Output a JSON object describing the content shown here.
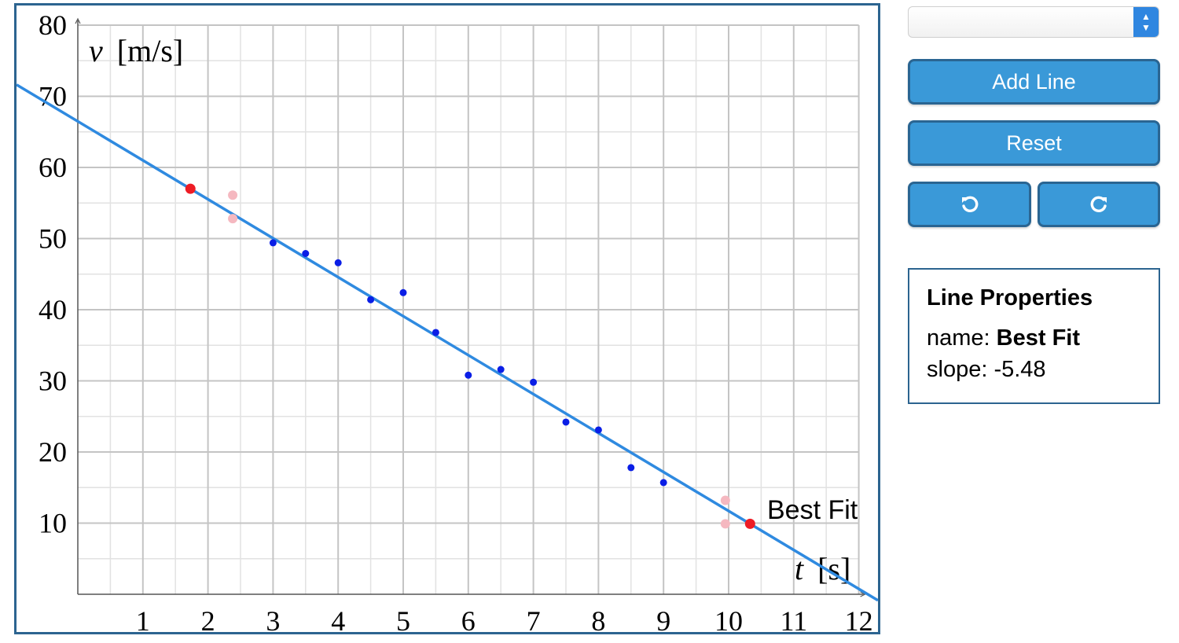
{
  "chart_data": {
    "type": "scatter",
    "xlabel_var": "t",
    "xlabel_unit": "[s]",
    "ylabel_var": "v",
    "ylabel_unit": "[m/s]",
    "xlim": [
      0,
      12
    ],
    "ylim": [
      0,
      80
    ],
    "x_ticks": [
      "1",
      "2",
      "3",
      "4",
      "5",
      "6",
      "7",
      "8",
      "9",
      "10",
      "11",
      "12"
    ],
    "y_ticks": [
      "10",
      "20",
      "30",
      "40",
      "50",
      "60",
      "70",
      "80"
    ],
    "grid": true,
    "minor_grid": true,
    "points": [
      {
        "x": 3.0,
        "y": 49.4
      },
      {
        "x": 3.5,
        "y": 47.9
      },
      {
        "x": 4.0,
        "y": 46.6
      },
      {
        "x": 4.5,
        "y": 41.4
      },
      {
        "x": 5.0,
        "y": 42.4
      },
      {
        "x": 5.5,
        "y": 36.8
      },
      {
        "x": 6.0,
        "y": 30.8
      },
      {
        "x": 6.5,
        "y": 31.6
      },
      {
        "x": 7.0,
        "y": 29.8
      },
      {
        "x": 7.5,
        "y": 24.2
      },
      {
        "x": 8.0,
        "y": 23.1
      },
      {
        "x": 8.5,
        "y": 17.8
      },
      {
        "x": 9.0,
        "y": 15.7
      }
    ],
    "line": {
      "name": "Best Fit",
      "slope": -5.48,
      "handles": [
        {
          "x": 1.73,
          "y": 57.0
        },
        {
          "x": 10.33,
          "y": 9.9
        }
      ],
      "rotate_markers": [
        {
          "x": 2.38,
          "y": 56.1
        },
        {
          "x": 2.38,
          "y": 52.8
        },
        {
          "x": 9.95,
          "y": 13.2
        },
        {
          "x": 9.95,
          "y": 9.9
        }
      ]
    },
    "colors": {
      "point": "#0a1ee6",
      "line": "#2f8ae0",
      "handle": "#ee1c25",
      "rotate_marker": "#f5b8c0",
      "grid_major": "#c4c4c4",
      "grid_minor": "#e2e2e2"
    }
  },
  "controls": {
    "select_value": "",
    "add_line_label": "Add Line",
    "reset_label": "Reset",
    "undo_icon": "undo-icon",
    "redo_icon": "redo-icon"
  },
  "properties": {
    "title": "Line Properties",
    "name_label": "name: ",
    "name_value": "Best Fit",
    "slope_label": "slope: ",
    "slope_value": "-5.48"
  }
}
